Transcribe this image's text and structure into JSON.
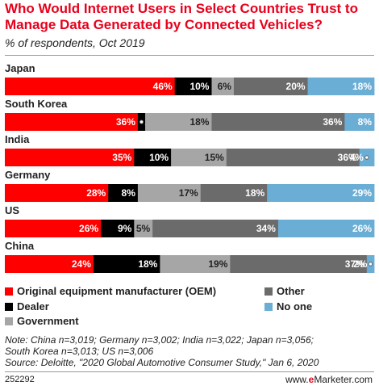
{
  "title": "Who Would Internet Users in Select Countries Trust to Manage Data Generated by Connected Vehicles?",
  "subtitle": "% of respondents, Oct 2019",
  "colors": {
    "oem": "#ff0000",
    "dealer": "#000000",
    "government": "#a6a6a6",
    "other": "#6b6b6b",
    "no_one": "#6aadd5",
    "title": "#e8001c"
  },
  "chart_data": {
    "type": "bar",
    "orientation": "horizontal",
    "stacked": true,
    "unit": "%",
    "categories": [
      "Japan",
      "South Korea",
      "India",
      "Germany",
      "US",
      "China"
    ],
    "series": [
      {
        "name": "Original equipment manufacturer (OEM)",
        "values": [
          46,
          36,
          35,
          28,
          26,
          24
        ]
      },
      {
        "name": "Dealer",
        "values": [
          10,
          2,
          10,
          8,
          9,
          18
        ]
      },
      {
        "name": "Government",
        "values": [
          6,
          18,
          15,
          17,
          5,
          19
        ]
      },
      {
        "name": "Other",
        "values": [
          20,
          36,
          36,
          18,
          34,
          37
        ]
      },
      {
        "name": "No one",
        "values": [
          18,
          8,
          4,
          29,
          26,
          2
        ]
      }
    ],
    "xlim": [
      0,
      100
    ],
    "legend_position": "bottom"
  },
  "notes": {
    "line1": "Note: China n=3,019; Germany n=3,002; India n=3,022; Japan n=3,056;",
    "line2": "South Korea n=3,013; US n=3,006",
    "line3": "Source: Deloitte, \"2020 Global Automotive Consumer Study,\" Jan 6, 2020"
  },
  "footer": {
    "chart_id": "252292",
    "brand_prefix": "www.",
    "brand_e": "e",
    "brand_suffix": "Marketer.com"
  }
}
